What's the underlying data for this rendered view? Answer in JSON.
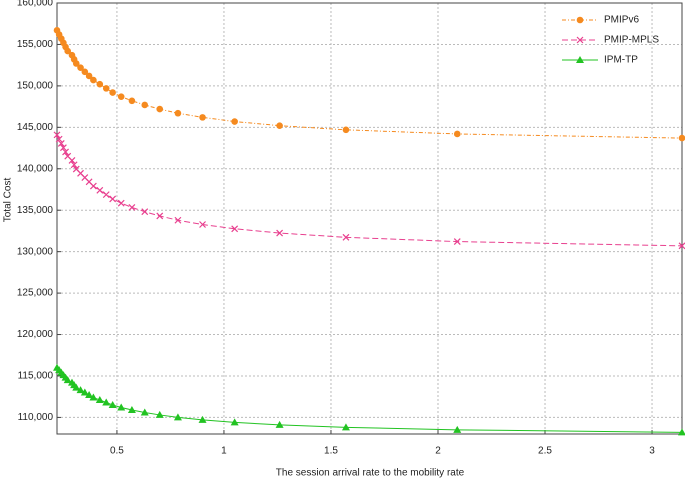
{
  "chart_data": {
    "type": "line",
    "x_label": "The session arrival rate to the mobility rate",
    "y_label": "Total Cost",
    "x": [
      0.22,
      0.23,
      0.24,
      0.25,
      0.26,
      0.27,
      0.29,
      0.3,
      0.31,
      0.33,
      0.35,
      0.37,
      0.39,
      0.42,
      0.45,
      0.48,
      0.52,
      0.57,
      0.63,
      0.7,
      0.785,
      0.9,
      1.05,
      1.26,
      1.57,
      2.09,
      3.14
    ],
    "series": [
      {
        "name": "PMIPv6",
        "color": "#f58a1f",
        "marker": "circle",
        "linestyle": "dashdot",
        "values": [
          156700,
          156200,
          155700,
          155200,
          154700,
          154200,
          153700,
          153200,
          152700,
          152200,
          151700,
          151200,
          150700,
          150200,
          149700,
          149200,
          148700,
          148200,
          147700,
          147200,
          146700,
          146200,
          145700,
          145200,
          144700,
          144200,
          143700
        ]
      },
      {
        "name": "PMIP-MPLS",
        "color": "#e8408f",
        "marker": "x",
        "linestyle": "dashed",
        "values": [
          144090,
          143575,
          143060,
          142545,
          142030,
          141515,
          141000,
          140485,
          139970,
          139455,
          138940,
          138425,
          137910,
          137395,
          136880,
          136365,
          135850,
          135335,
          134820,
          134305,
          133790,
          133275,
          132760,
          132245,
          131730,
          131215,
          130700
        ]
      },
      {
        "name": "IPM-TP",
        "color": "#22c322",
        "marker": "triangle",
        "linestyle": "solid",
        "values": [
          116000,
          115700,
          115400,
          115100,
          114800,
          114500,
          114200,
          113900,
          113600,
          113300,
          113000,
          112700,
          112400,
          112100,
          111800,
          111500,
          111200,
          110900,
          110600,
          110300,
          110000,
          109700,
          109400,
          109100,
          108800,
          108500,
          108200
        ]
      }
    ],
    "xlim": [
      0.22,
      3.14
    ],
    "xticks": [
      0.5,
      1,
      1.5,
      2,
      2.5,
      3
    ],
    "ylim": [
      108000,
      160000
    ],
    "yticks": [
      {
        "value": 110000,
        "label": "110,000"
      },
      {
        "value": 115000,
        "label": "115,000"
      },
      {
        "value": 120000,
        "label": "120,000"
      },
      {
        "value": 125000,
        "label": "125,000"
      },
      {
        "value": 130000,
        "label": "130,000"
      },
      {
        "value": 135000,
        "label": "135,000"
      },
      {
        "value": 140000,
        "label": "140,000"
      },
      {
        "value": 145000,
        "label": "145,000"
      },
      {
        "value": 150000,
        "label": "150,000"
      },
      {
        "value": 155000,
        "label": "155,000"
      },
      {
        "value": 160000,
        "label": "160,000"
      }
    ],
    "grid": true,
    "legend": "upper right"
  }
}
